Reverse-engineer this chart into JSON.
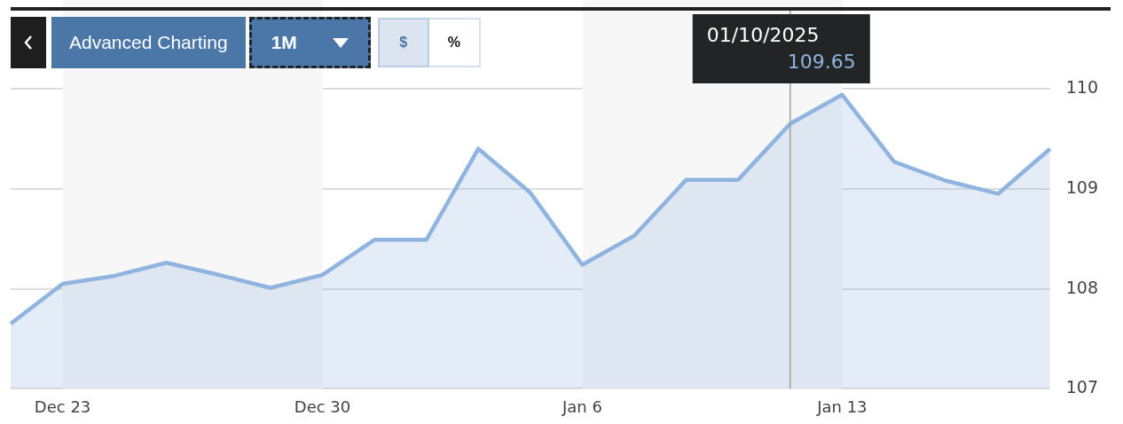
{
  "chart_data": {
    "type": "area",
    "categories": [
      null,
      "Dec 23",
      null,
      null,
      null,
      null,
      "Dec 30",
      null,
      null,
      null,
      null,
      "Jan 6",
      null,
      null,
      null,
      null,
      "Jan 13",
      null,
      null,
      null,
      null
    ],
    "series": [
      {
        "color": "#8fb4e0",
        "values": [
          107.65,
          108.05,
          108.13,
          108.26,
          108.14,
          108.01,
          108.14,
          108.49,
          108.49,
          109.4,
          108.96,
          108.24,
          108.53,
          109.09,
          109.09,
          109.65,
          109.94,
          109.27,
          109.08,
          108.95,
          109.4
        ]
      }
    ],
    "ylim": [
      107,
      110
    ],
    "yticks": [
      107,
      108,
      109,
      110
    ],
    "grid": "y",
    "legend": false,
    "bands": [
      {
        "axis": "x",
        "from": "Dec 23",
        "to": "Dec 30",
        "color": "#f7f7f7"
      },
      {
        "axis": "x",
        "from": "Jan 6",
        "to": "Jan 13",
        "color": "#f7f7f7"
      }
    ],
    "annotations": [
      "Advanced Charting",
      "1M",
      "$",
      "%",
      {
        "text": "01/10/2025\n109.65",
        "y": 109.65
      }
    ]
  }
}
